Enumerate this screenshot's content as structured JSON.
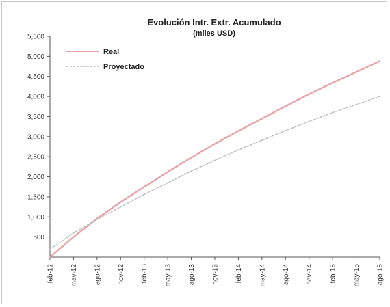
{
  "chart_data": {
    "type": "line",
    "title": "Evolución Intr. Extr. Acumulado",
    "subtitle": "(miles USD)",
    "xlabel": "",
    "ylabel": "",
    "ylim": [
      0,
      5500
    ],
    "yticks": [
      500,
      1000,
      1500,
      2000,
      2500,
      3000,
      3500,
      4000,
      4500,
      5000,
      5500
    ],
    "ytick_labels": [
      "500",
      "1,000",
      "1,500",
      "2,000",
      "2,500",
      "3,000",
      "3,500",
      "4,000",
      "4,500",
      "5,000",
      "5,500"
    ],
    "categories": [
      "feb-12",
      "may-12",
      "ago-12",
      "nov-12",
      "feb-13",
      "may-13",
      "ago-13",
      "nov-13",
      "feb-14",
      "may-14",
      "ago-14",
      "nov-14",
      "feb-15",
      "may-15",
      "ago-15"
    ],
    "grid": false,
    "legend": "top-left",
    "series": [
      {
        "name": "Real",
        "color": "#e8a3a8",
        "values": [
          0,
          500,
          960,
          1370,
          1750,
          2120,
          2480,
          2820,
          3140,
          3450,
          3760,
          4060,
          4340,
          4610,
          4880
        ]
      },
      {
        "name": "Proyectado",
        "color": "#bdbdbd",
        "values": [
          200,
          600,
          940,
          1250,
          1560,
          1850,
          2140,
          2410,
          2670,
          2910,
          3150,
          3380,
          3600,
          3800,
          4000
        ]
      }
    ]
  }
}
